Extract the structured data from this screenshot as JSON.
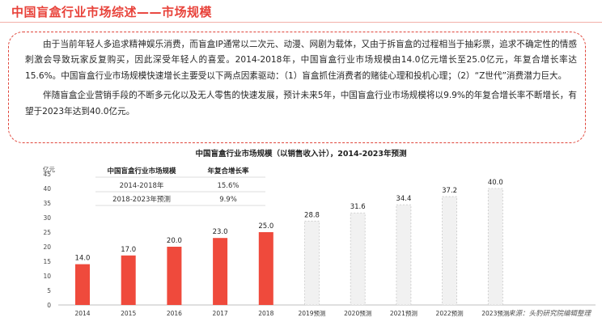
{
  "header": {
    "title": "中国盲盒行业市场综述——市场规模"
  },
  "summary": {
    "paragraph_1": "由于当前年轻人多追求精神娱乐消费，而盲盒IP通常以二次元、动漫、网剧为载体，又由于拆盲盒的过程相当于抽彩票，追求不确定性的情感刺激会导致玩家反复购买，因此深受年轻人的喜爱。2014-2018年，中国盲盒行业市场规模由14.0亿元增长至25.0亿元，年复合增长率达15.6%。中国盲盒行业市场规模快速增长主要受以下两点因素驱动：（1）盲盒抓住消费者的赌徒心理和投机心理；（2）“Z世代”消费潜力巨大。",
    "paragraph_2": "伴随盲盒企业营销手段的不断多元化以及无人零售的快速发展，预计未来5年，中国盲盒行业市场规模将以9.9%的年复合增长率不断增长，有望于2023年达到40.0亿元。"
  },
  "colors": {
    "accent": "#e8423a",
    "actual_bar": "#ef4a3c",
    "forecast_bar": "#f1f1f1",
    "forecast_border": "#c8c8c8",
    "table_header": "#dddddd"
  },
  "chart_data": {
    "type": "bar",
    "title": "中国盲盒行业市场规模（以销售收入计），2014-2023年预测",
    "ylabel": "亿元",
    "xlabel": "",
    "ylim": [
      0,
      45
    ],
    "yticks": [
      0,
      5,
      10,
      15,
      20,
      25,
      30,
      35,
      40,
      45
    ],
    "grid": false,
    "categories": [
      "2014",
      "2015",
      "2016",
      "2017",
      "2018",
      "2019预测",
      "2020预测",
      "2021预测",
      "2022预测",
      "2023预测"
    ],
    "values": [
      14.0,
      17.0,
      20.0,
      23.0,
      25.0,
      28.8,
      31.6,
      34.4,
      37.2,
      40.0
    ],
    "labels": [
      "14.0",
      "17.0",
      "20.0",
      "23.0",
      "25.0",
      "28.8",
      "31.6",
      "34.4",
      "37.2",
      "40.0"
    ],
    "forecast": [
      false,
      false,
      false,
      false,
      false,
      true,
      true,
      true,
      true,
      true
    ],
    "cagr_table": {
      "headers": [
        "中国盲盒行业市场规模",
        "年复合增长率"
      ],
      "rows": [
        [
          "2014-2018年",
          "15.6%"
        ],
        [
          "2018-2023年预测",
          "9.9%"
        ]
      ]
    },
    "source": "来源：头豹研究院编辑整理"
  }
}
